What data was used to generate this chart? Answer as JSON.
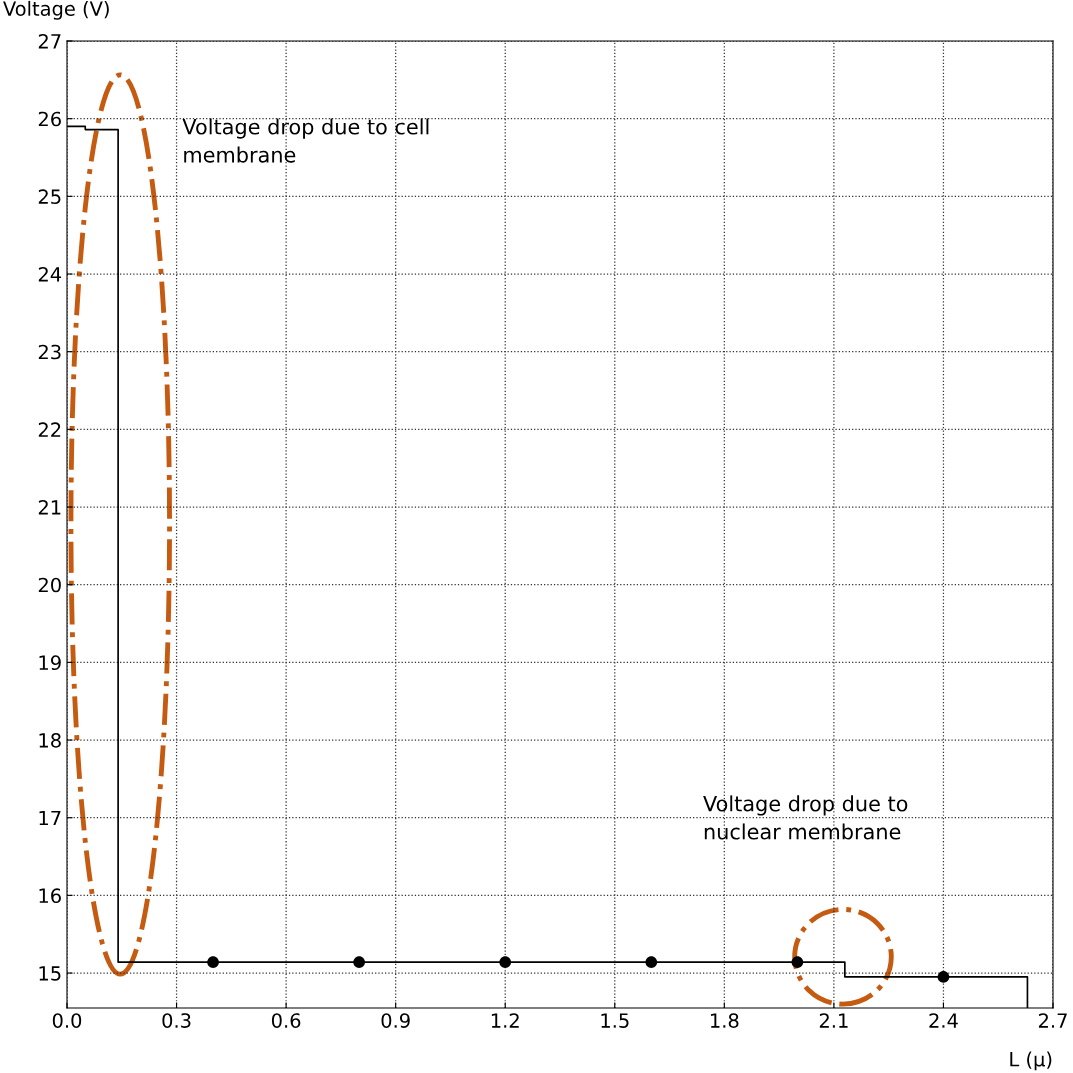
{
  "chart_data": {
    "type": "step",
    "xlabel": "L (μ)",
    "ylabel": "Voltage (V)",
    "xlim": [
      0,
      2.7
    ],
    "xticks": [
      {
        "value": 0,
        "label": "0.0"
      },
      0.3,
      0.6,
      0.9,
      1.2,
      1.5,
      1.8,
      2.1,
      2.4,
      2.7
    ],
    "ylim": [
      14.55,
      27
    ],
    "yticks": [
      15,
      16,
      17,
      18,
      19,
      20,
      21,
      22,
      23,
      24,
      25,
      26,
      27
    ],
    "grid": true,
    "series": [
      {
        "color": "#000000",
        "x": [
          0,
          0.05,
          0.14,
          2.13,
          2.63,
          2.63
        ],
        "values": [
          25.9,
          25.86,
          15.14,
          14.95,
          14.95,
          14.55
        ],
        "marker": "none"
      },
      {
        "type": "scatter",
        "color": "#000000",
        "x": [
          0.4,
          0.8,
          1.2,
          1.6,
          2.0,
          2.4
        ],
        "values": [
          15.14,
          15.14,
          15.14,
          15.14,
          15.14,
          14.95
        ],
        "marker": "circle"
      }
    ],
    "annotations": [
      "Voltage drop due to cell\nmembrane",
      "Voltage drop due to\nnuclear membrane"
    ]
  }
}
